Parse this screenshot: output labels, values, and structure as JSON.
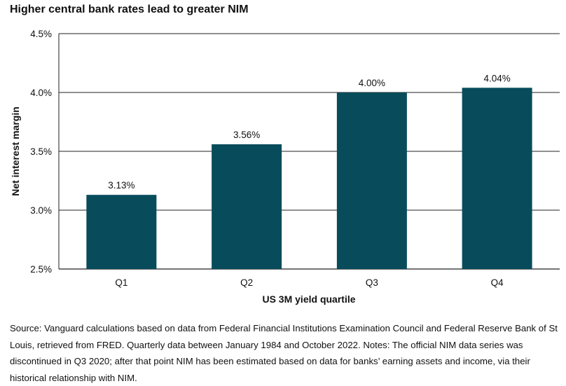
{
  "chart_data": {
    "type": "bar",
    "title": "Higher central bank rates lead to greater NIM",
    "xlabel": "US 3M yield quartile",
    "ylabel": "Net interest margin",
    "categories": [
      "Q1",
      "Q2",
      "Q3",
      "Q4"
    ],
    "values": [
      3.13,
      3.56,
      4.0,
      4.04
    ],
    "data_labels": [
      "3.13%",
      "3.56%",
      "4.00%",
      "4.04%"
    ],
    "ylim": [
      2.5,
      4.5
    ],
    "yticks": [
      2.5,
      3.0,
      3.5,
      4.0,
      4.5
    ],
    "ytick_labels": [
      "2.5%",
      "3.0%",
      "3.5%",
      "4.0%",
      "4.5%"
    ],
    "grid": true,
    "bar_color": "#084c5c"
  },
  "source_note": "Source: Vanguard calculations based on data from Federal Financial Institutions Examination Council and Federal Reserve Bank of St Louis, retrieved from FRED. Quarterly data between January 1984 and October 2022. Notes: The official NIM data series was discontinued in Q3 2020; after that point NIM has been estimated based on data for banks’ earning assets and income, via their historical relationship with NIM."
}
